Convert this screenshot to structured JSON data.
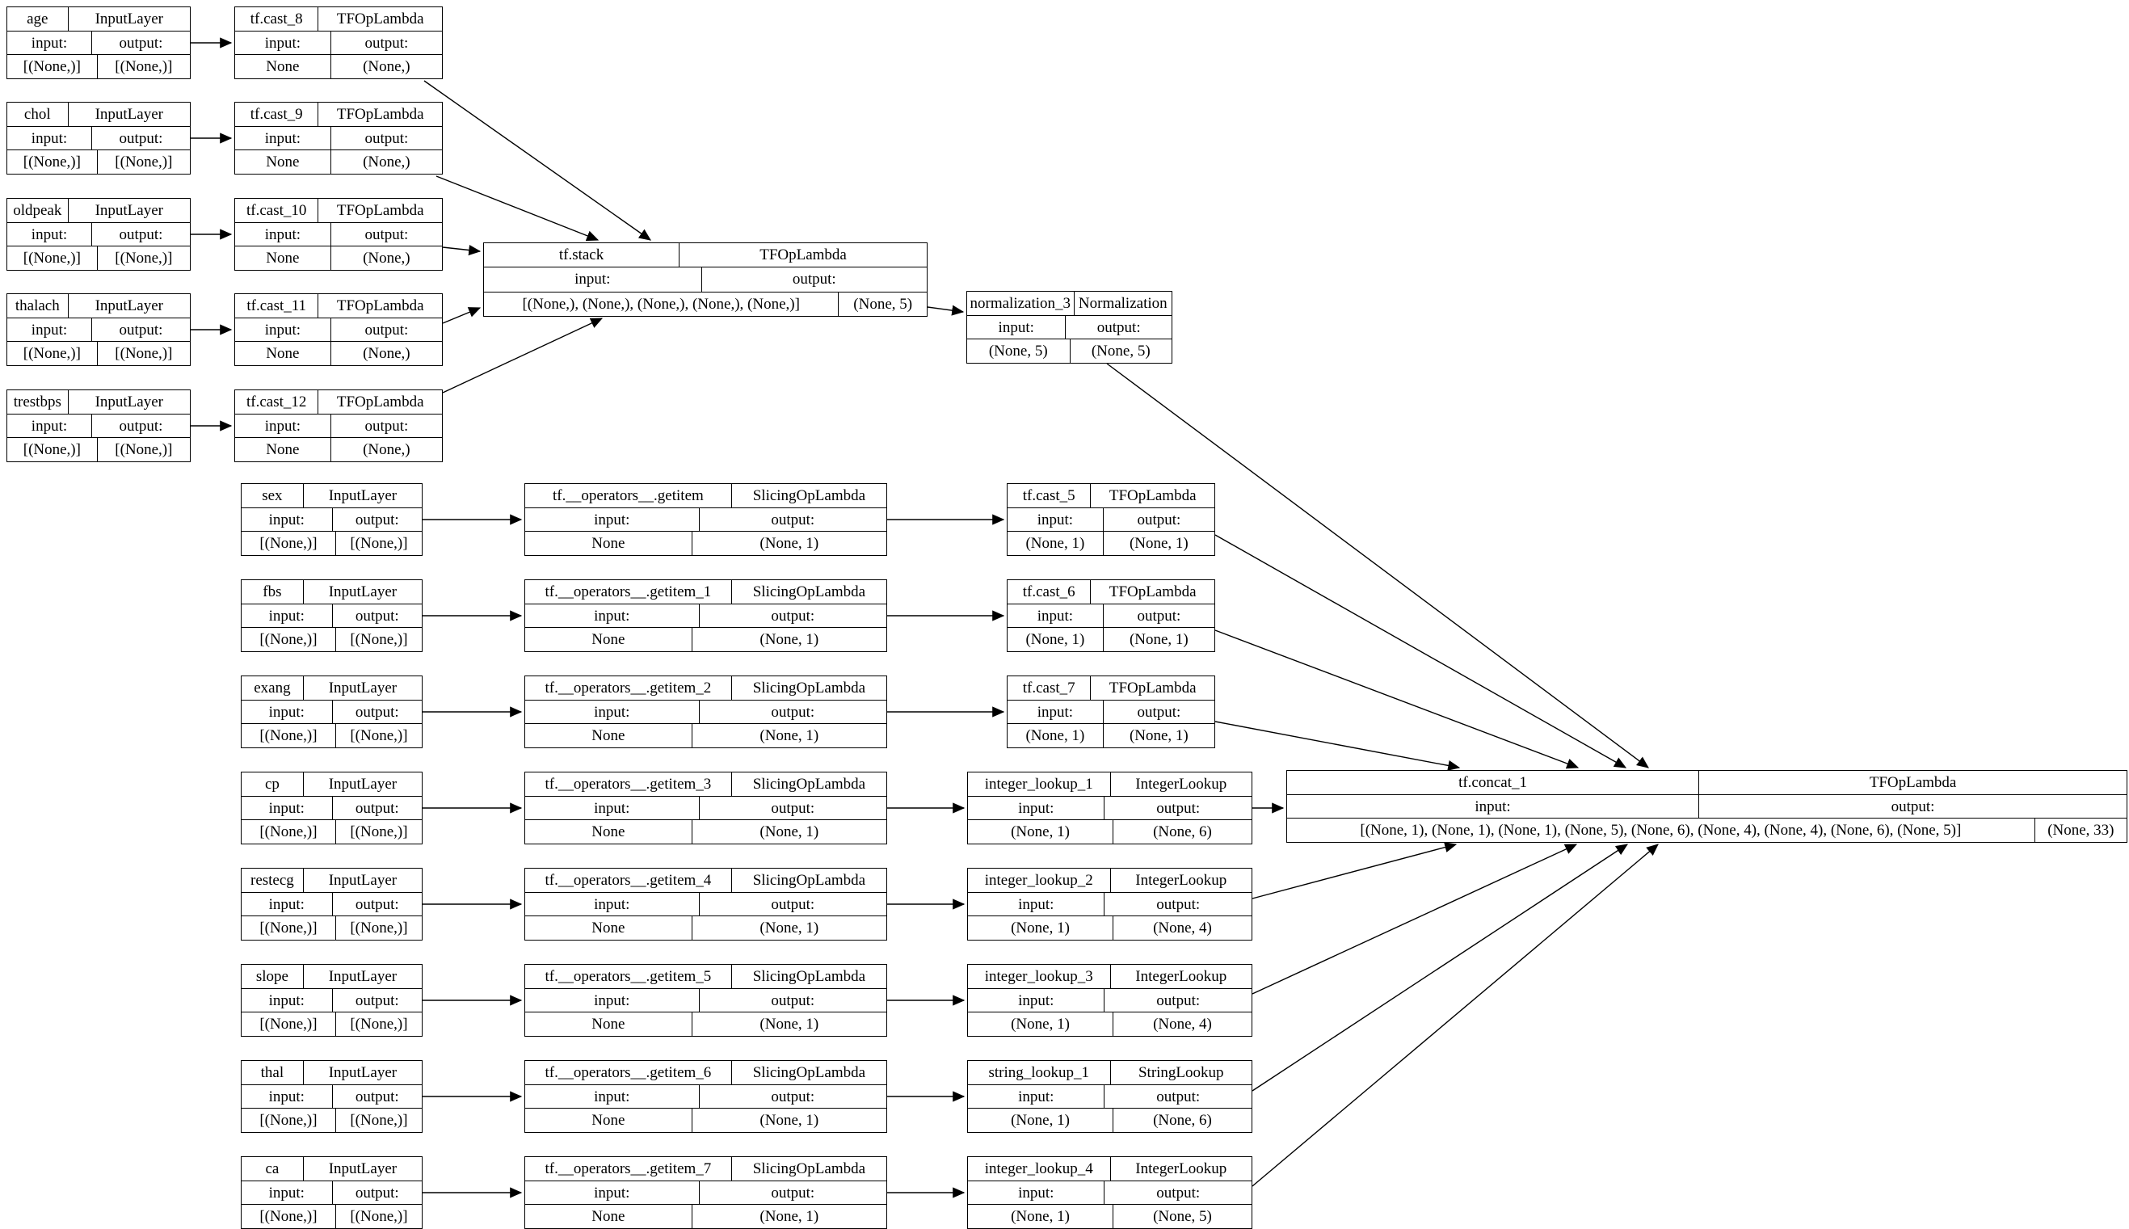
{
  "diagram": {
    "background": "#ffffff",
    "line_color": "#000000",
    "text_color": "#000000",
    "labels": {
      "input": "input:",
      "output": "output:"
    },
    "nodes": [
      {
        "id": "age",
        "name": "age",
        "cls": "InputLayer",
        "input": "[(None,)]",
        "output": "[(None,)]"
      },
      {
        "id": "chol",
        "name": "chol",
        "cls": "InputLayer",
        "input": "[(None,)]",
        "output": "[(None,)]"
      },
      {
        "id": "oldpeak",
        "name": "oldpeak",
        "cls": "InputLayer",
        "input": "[(None,)]",
        "output": "[(None,)]"
      },
      {
        "id": "thalach",
        "name": "thalach",
        "cls": "InputLayer",
        "input": "[(None,)]",
        "output": "[(None,)]"
      },
      {
        "id": "trestbps",
        "name": "trestbps",
        "cls": "InputLayer",
        "input": "[(None,)]",
        "output": "[(None,)]"
      },
      {
        "id": "cast8",
        "name": "tf.cast_8",
        "cls": "TFOpLambda",
        "input": "None",
        "output": "(None,)"
      },
      {
        "id": "cast9",
        "name": "tf.cast_9",
        "cls": "TFOpLambda",
        "input": "None",
        "output": "(None,)"
      },
      {
        "id": "cast10",
        "name": "tf.cast_10",
        "cls": "TFOpLambda",
        "input": "None",
        "output": "(None,)"
      },
      {
        "id": "cast11",
        "name": "tf.cast_11",
        "cls": "TFOpLambda",
        "input": "None",
        "output": "(None,)"
      },
      {
        "id": "cast12",
        "name": "tf.cast_12",
        "cls": "TFOpLambda",
        "input": "None",
        "output": "(None,)"
      },
      {
        "id": "stack",
        "name": "tf.stack",
        "cls": "TFOpLambda",
        "input": "[(None,), (None,), (None,), (None,), (None,)]",
        "output": "(None, 5)"
      },
      {
        "id": "norm",
        "name": "normalization_3",
        "cls": "Normalization",
        "input": "(None, 5)",
        "output": "(None, 5)"
      },
      {
        "id": "sex",
        "name": "sex",
        "cls": "InputLayer",
        "input": "[(None,)]",
        "output": "[(None,)]"
      },
      {
        "id": "fbs",
        "name": "fbs",
        "cls": "InputLayer",
        "input": "[(None,)]",
        "output": "[(None,)]"
      },
      {
        "id": "exang",
        "name": "exang",
        "cls": "InputLayer",
        "input": "[(None,)]",
        "output": "[(None,)]"
      },
      {
        "id": "cp",
        "name": "cp",
        "cls": "InputLayer",
        "input": "[(None,)]",
        "output": "[(None,)]"
      },
      {
        "id": "restecg",
        "name": "restecg",
        "cls": "InputLayer",
        "input": "[(None,)]",
        "output": "[(None,)]"
      },
      {
        "id": "slope",
        "name": "slope",
        "cls": "InputLayer",
        "input": "[(None,)]",
        "output": "[(None,)]"
      },
      {
        "id": "thal",
        "name": "thal",
        "cls": "InputLayer",
        "input": "[(None,)]",
        "output": "[(None,)]"
      },
      {
        "id": "ca",
        "name": "ca",
        "cls": "InputLayer",
        "input": "[(None,)]",
        "output": "[(None,)]"
      },
      {
        "id": "gi0",
        "name": "tf.__operators__.getitem",
        "cls": "SlicingOpLambda",
        "input": "None",
        "output": "(None, 1)"
      },
      {
        "id": "gi1",
        "name": "tf.__operators__.getitem_1",
        "cls": "SlicingOpLambda",
        "input": "None",
        "output": "(None, 1)"
      },
      {
        "id": "gi2",
        "name": "tf.__operators__.getitem_2",
        "cls": "SlicingOpLambda",
        "input": "None",
        "output": "(None, 1)"
      },
      {
        "id": "gi3",
        "name": "tf.__operators__.getitem_3",
        "cls": "SlicingOpLambda",
        "input": "None",
        "output": "(None, 1)"
      },
      {
        "id": "gi4",
        "name": "tf.__operators__.getitem_4",
        "cls": "SlicingOpLambda",
        "input": "None",
        "output": "(None, 1)"
      },
      {
        "id": "gi5",
        "name": "tf.__operators__.getitem_5",
        "cls": "SlicingOpLambda",
        "input": "None",
        "output": "(None, 1)"
      },
      {
        "id": "gi6",
        "name": "tf.__operators__.getitem_6",
        "cls": "SlicingOpLambda",
        "input": "None",
        "output": "(None, 1)"
      },
      {
        "id": "gi7",
        "name": "tf.__operators__.getitem_7",
        "cls": "SlicingOpLambda",
        "input": "None",
        "output": "(None, 1)"
      },
      {
        "id": "cast5",
        "name": "tf.cast_5",
        "cls": "TFOpLambda",
        "input": "(None, 1)",
        "output": "(None, 1)"
      },
      {
        "id": "cast6",
        "name": "tf.cast_6",
        "cls": "TFOpLambda",
        "input": "(None, 1)",
        "output": "(None, 1)"
      },
      {
        "id": "cast7",
        "name": "tf.cast_7",
        "cls": "TFOpLambda",
        "input": "(None, 1)",
        "output": "(None, 1)"
      },
      {
        "id": "il1",
        "name": "integer_lookup_1",
        "cls": "IntegerLookup",
        "input": "(None, 1)",
        "output": "(None, 6)"
      },
      {
        "id": "il2",
        "name": "integer_lookup_2",
        "cls": "IntegerLookup",
        "input": "(None, 1)",
        "output": "(None, 4)"
      },
      {
        "id": "il3",
        "name": "integer_lookup_3",
        "cls": "IntegerLookup",
        "input": "(None, 1)",
        "output": "(None, 4)"
      },
      {
        "id": "sl1",
        "name": "string_lookup_1",
        "cls": "StringLookup",
        "input": "(None, 1)",
        "output": "(None, 6)"
      },
      {
        "id": "il4",
        "name": "integer_lookup_4",
        "cls": "IntegerLookup",
        "input": "(None, 1)",
        "output": "(None, 5)"
      },
      {
        "id": "concat",
        "name": "tf.concat_1",
        "cls": "TFOpLambda",
        "input": "[(None, 1), (None, 1), (None, 1), (None, 5), (None, 6), (None, 4), (None, 4), (None, 6), (None, 5)]",
        "output": "(None, 33)"
      }
    ],
    "edges": [
      {
        "from": "age",
        "to": "cast8"
      },
      {
        "from": "chol",
        "to": "cast9"
      },
      {
        "from": "oldpeak",
        "to": "cast10"
      },
      {
        "from": "thalach",
        "to": "cast11"
      },
      {
        "from": "trestbps",
        "to": "cast12"
      },
      {
        "from": "cast8",
        "to": "stack"
      },
      {
        "from": "cast9",
        "to": "stack"
      },
      {
        "from": "cast10",
        "to": "stack"
      },
      {
        "from": "cast11",
        "to": "stack"
      },
      {
        "from": "cast12",
        "to": "stack"
      },
      {
        "from": "stack",
        "to": "norm"
      },
      {
        "from": "norm",
        "to": "concat"
      },
      {
        "from": "sex",
        "to": "gi0"
      },
      {
        "from": "fbs",
        "to": "gi1"
      },
      {
        "from": "exang",
        "to": "gi2"
      },
      {
        "from": "cp",
        "to": "gi3"
      },
      {
        "from": "restecg",
        "to": "gi4"
      },
      {
        "from": "slope",
        "to": "gi5"
      },
      {
        "from": "thal",
        "to": "gi6"
      },
      {
        "from": "ca",
        "to": "gi7"
      },
      {
        "from": "gi0",
        "to": "cast5"
      },
      {
        "from": "gi1",
        "to": "cast6"
      },
      {
        "from": "gi2",
        "to": "cast7"
      },
      {
        "from": "gi3",
        "to": "il1"
      },
      {
        "from": "gi4",
        "to": "il2"
      },
      {
        "from": "gi5",
        "to": "il3"
      },
      {
        "from": "gi6",
        "to": "sl1"
      },
      {
        "from": "gi7",
        "to": "il4"
      },
      {
        "from": "cast5",
        "to": "concat"
      },
      {
        "from": "cast6",
        "to": "concat"
      },
      {
        "from": "cast7",
        "to": "concat"
      },
      {
        "from": "il1",
        "to": "concat"
      },
      {
        "from": "il2",
        "to": "concat"
      },
      {
        "from": "il3",
        "to": "concat"
      },
      {
        "from": "sl1",
        "to": "concat"
      },
      {
        "from": "il4",
        "to": "concat"
      }
    ]
  }
}
